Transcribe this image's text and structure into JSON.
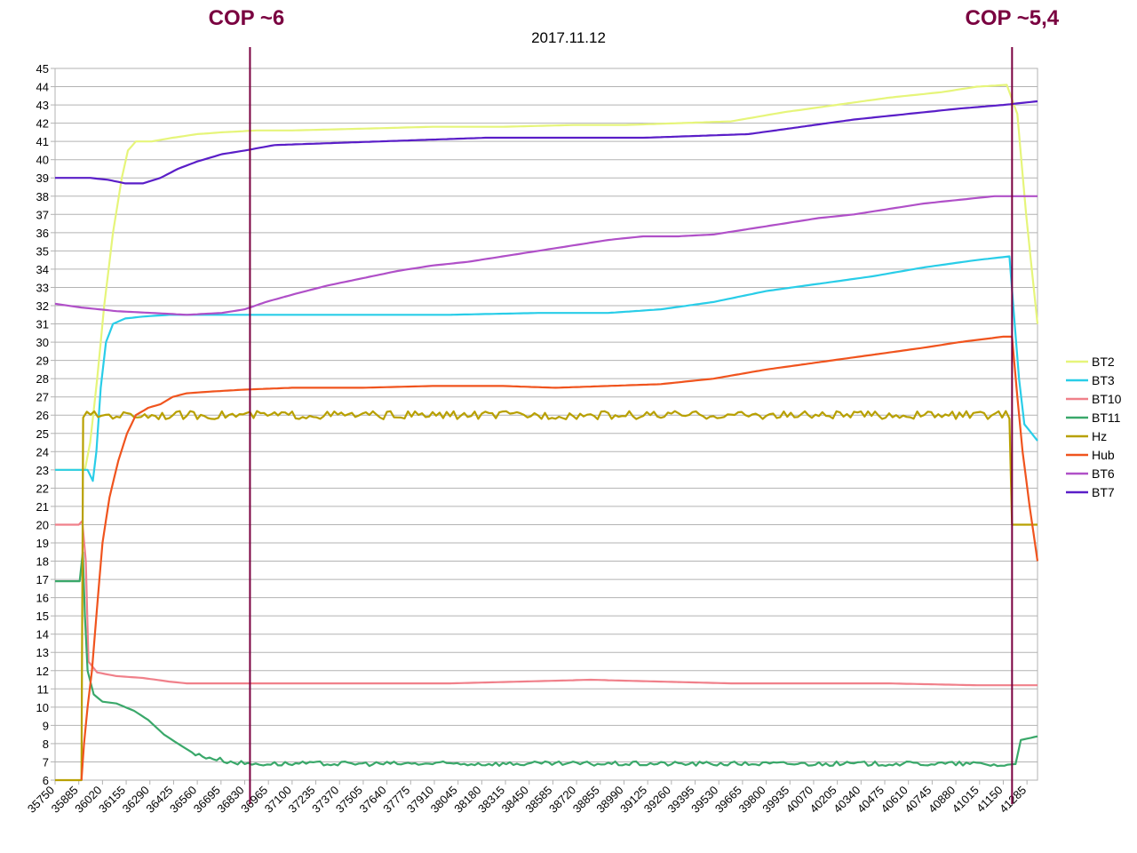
{
  "chart_data": {
    "type": "line",
    "title": "2017.11.12",
    "xlabel": "",
    "ylabel": "",
    "xlim": [
      35750,
      41345
    ],
    "ylim": [
      6,
      45
    ],
    "y_tick_step": 1,
    "x_ticks": [
      35750,
      35885,
      36020,
      36155,
      36290,
      36425,
      36560,
      36695,
      36830,
      36965,
      37100,
      37235,
      37370,
      37505,
      37640,
      37775,
      37910,
      38045,
      38180,
      38315,
      38450,
      38585,
      38720,
      38855,
      38990,
      39125,
      39260,
      39395,
      39530,
      39665,
      39800,
      39935,
      40070,
      40205,
      40340,
      40475,
      40610,
      40745,
      40880,
      41015,
      41150,
      41285
    ],
    "grid": true,
    "legend_position": "right",
    "annotations": [
      {
        "text": "COP ~6",
        "x": 36860,
        "color": "#7a0040"
      },
      {
        "text": "COP ~5,4",
        "x": 41200,
        "color": "#7a0040"
      }
    ],
    "series": [
      {
        "name": "BT2",
        "color": "#e6f57a",
        "points": [
          [
            35750,
            23
          ],
          [
            35885,
            23
          ],
          [
            35920,
            23
          ],
          [
            35950,
            24.5
          ],
          [
            35990,
            28
          ],
          [
            36030,
            32
          ],
          [
            36080,
            36
          ],
          [
            36130,
            39
          ],
          [
            36165,
            40.5
          ],
          [
            36210,
            41
          ],
          [
            36300,
            41
          ],
          [
            36420,
            41.2
          ],
          [
            36560,
            41.4
          ],
          [
            36700,
            41.5
          ],
          [
            36900,
            41.6
          ],
          [
            37100,
            41.6
          ],
          [
            37500,
            41.7
          ],
          [
            37900,
            41.8
          ],
          [
            38300,
            41.8
          ],
          [
            38700,
            41.9
          ],
          [
            39000,
            41.9
          ],
          [
            39300,
            42
          ],
          [
            39600,
            42.1
          ],
          [
            39900,
            42.6
          ],
          [
            40200,
            43
          ],
          [
            40500,
            43.4
          ],
          [
            40800,
            43.7
          ],
          [
            41000,
            44
          ],
          [
            41170,
            44.1
          ],
          [
            41230,
            42.5
          ],
          [
            41280,
            37
          ],
          [
            41345,
            31
          ]
        ]
      },
      {
        "name": "BT3",
        "color": "#29cde8",
        "points": [
          [
            35750,
            23
          ],
          [
            35935,
            23
          ],
          [
            35965,
            22.4
          ],
          [
            35985,
            24
          ],
          [
            36010,
            27.5
          ],
          [
            36040,
            30
          ],
          [
            36080,
            31
          ],
          [
            36150,
            31.3
          ],
          [
            36250,
            31.4
          ],
          [
            36400,
            31.5
          ],
          [
            36600,
            31.5
          ],
          [
            36830,
            31.5
          ],
          [
            37500,
            31.5
          ],
          [
            38000,
            31.5
          ],
          [
            38500,
            31.6
          ],
          [
            38900,
            31.6
          ],
          [
            39200,
            31.8
          ],
          [
            39500,
            32.2
          ],
          [
            39800,
            32.8
          ],
          [
            40100,
            33.2
          ],
          [
            40400,
            33.6
          ],
          [
            40700,
            34.1
          ],
          [
            41000,
            34.5
          ],
          [
            41185,
            34.7
          ],
          [
            41215,
            31
          ],
          [
            41240,
            28
          ],
          [
            41270,
            25.5
          ],
          [
            41345,
            24.6
          ]
        ]
      },
      {
        "name": "BT10",
        "color": "#f0808a",
        "points": [
          [
            35750,
            20
          ],
          [
            35885,
            20
          ],
          [
            35905,
            20.2
          ],
          [
            35925,
            18
          ],
          [
            35940,
            12.5
          ],
          [
            35990,
            11.9
          ],
          [
            36100,
            11.7
          ],
          [
            36250,
            11.6
          ],
          [
            36400,
            11.4
          ],
          [
            36500,
            11.3
          ],
          [
            36830,
            11.3
          ],
          [
            37500,
            11.3
          ],
          [
            38000,
            11.3
          ],
          [
            38400,
            11.4
          ],
          [
            38800,
            11.5
          ],
          [
            39200,
            11.4
          ],
          [
            39600,
            11.3
          ],
          [
            40000,
            11.3
          ],
          [
            40500,
            11.3
          ],
          [
            41000,
            11.2
          ],
          [
            41200,
            11.2
          ],
          [
            41345,
            11.2
          ]
        ]
      },
      {
        "name": "BT11",
        "color": "#3aa86a",
        "points": [
          [
            35750,
            16.9
          ],
          [
            35890,
            16.9
          ],
          [
            35908,
            18.5
          ],
          [
            35920,
            15
          ],
          [
            35935,
            12
          ],
          [
            35970,
            10.7
          ],
          [
            36020,
            10.3
          ],
          [
            36100,
            10.2
          ],
          [
            36200,
            9.8
          ],
          [
            36280,
            9.3
          ],
          [
            36370,
            8.5
          ],
          [
            36450,
            8
          ],
          [
            36550,
            7.4
          ],
          [
            36650,
            7.2
          ],
          [
            36750,
            7
          ],
          [
            36850,
            6.9
          ],
          [
            37000,
            6.9
          ],
          [
            37500,
            6.9
          ],
          [
            38000,
            6.9
          ],
          [
            38500,
            6.9
          ],
          [
            39000,
            6.9
          ],
          [
            39500,
            6.9
          ],
          [
            40000,
            6.9
          ],
          [
            40500,
            6.9
          ],
          [
            41000,
            6.9
          ],
          [
            41175,
            6.8
          ],
          [
            41220,
            6.9
          ],
          [
            41250,
            8.2
          ],
          [
            41345,
            8.4
          ]
        ]
      },
      {
        "name": "Hz",
        "color": "#b8a000",
        "points": [
          [
            35750,
            6
          ],
          [
            35900,
            6
          ],
          [
            35910,
            26
          ],
          [
            36100,
            26
          ],
          [
            36500,
            26
          ],
          [
            37000,
            26
          ],
          [
            37500,
            26
          ],
          [
            38000,
            26
          ],
          [
            38500,
            26
          ],
          [
            39000,
            26
          ],
          [
            39500,
            26
          ],
          [
            40000,
            26
          ],
          [
            40500,
            26
          ],
          [
            41000,
            26
          ],
          [
            41185,
            26
          ],
          [
            41200,
            20
          ],
          [
            41345,
            20
          ]
        ]
      },
      {
        "name": "Hub",
        "color": "#f0541e",
        "points": [
          [
            35900,
            6
          ],
          [
            35915,
            8
          ],
          [
            35935,
            10
          ],
          [
            35960,
            12
          ],
          [
            35985,
            15
          ],
          [
            36020,
            19
          ],
          [
            36060,
            21.5
          ],
          [
            36110,
            23.5
          ],
          [
            36160,
            25
          ],
          [
            36210,
            26
          ],
          [
            36280,
            26.4
          ],
          [
            36350,
            26.6
          ],
          [
            36420,
            27
          ],
          [
            36500,
            27.2
          ],
          [
            36650,
            27.3
          ],
          [
            36830,
            27.4
          ],
          [
            37100,
            27.5
          ],
          [
            37500,
            27.5
          ],
          [
            37900,
            27.6
          ],
          [
            38300,
            27.6
          ],
          [
            38600,
            27.5
          ],
          [
            38900,
            27.6
          ],
          [
            39200,
            27.7
          ],
          [
            39500,
            28
          ],
          [
            39800,
            28.5
          ],
          [
            40100,
            28.9
          ],
          [
            40400,
            29.3
          ],
          [
            40700,
            29.7
          ],
          [
            40900,
            30
          ],
          [
            41150,
            30.3
          ],
          [
            41200,
            30.3
          ],
          [
            41230,
            27
          ],
          [
            41260,
            24
          ],
          [
            41300,
            21
          ],
          [
            41345,
            18
          ]
        ]
      },
      {
        "name": "BT6",
        "color": "#b050c8",
        "points": [
          [
            35750,
            32.1
          ],
          [
            35900,
            31.9
          ],
          [
            36100,
            31.7
          ],
          [
            36300,
            31.6
          ],
          [
            36500,
            31.5
          ],
          [
            36700,
            31.6
          ],
          [
            36830,
            31.8
          ],
          [
            36950,
            32.2
          ],
          [
            37100,
            32.6
          ],
          [
            37300,
            33.1
          ],
          [
            37500,
            33.5
          ],
          [
            37700,
            33.9
          ],
          [
            37900,
            34.2
          ],
          [
            38100,
            34.4
          ],
          [
            38300,
            34.7
          ],
          [
            38500,
            35
          ],
          [
            38700,
            35.3
          ],
          [
            38900,
            35.6
          ],
          [
            39100,
            35.8
          ],
          [
            39300,
            35.8
          ],
          [
            39500,
            35.9
          ],
          [
            39700,
            36.2
          ],
          [
            39900,
            36.5
          ],
          [
            40100,
            36.8
          ],
          [
            40300,
            37
          ],
          [
            40500,
            37.3
          ],
          [
            40700,
            37.6
          ],
          [
            40900,
            37.8
          ],
          [
            41100,
            38
          ],
          [
            41345,
            38
          ]
        ]
      },
      {
        "name": "BT7",
        "color": "#5a1ec8",
        "points": [
          [
            35750,
            39
          ],
          [
            35950,
            39
          ],
          [
            36050,
            38.9
          ],
          [
            36150,
            38.7
          ],
          [
            36250,
            38.7
          ],
          [
            36350,
            39
          ],
          [
            36450,
            39.5
          ],
          [
            36560,
            39.9
          ],
          [
            36700,
            40.3
          ],
          [
            36830,
            40.5
          ],
          [
            37000,
            40.8
          ],
          [
            37300,
            40.9
          ],
          [
            37600,
            41
          ],
          [
            37900,
            41.1
          ],
          [
            38200,
            41.2
          ],
          [
            38500,
            41.2
          ],
          [
            38800,
            41.2
          ],
          [
            39100,
            41.2
          ],
          [
            39400,
            41.3
          ],
          [
            39700,
            41.4
          ],
          [
            40000,
            41.8
          ],
          [
            40300,
            42.2
          ],
          [
            40600,
            42.5
          ],
          [
            40900,
            42.8
          ],
          [
            41150,
            43
          ],
          [
            41345,
            43.2
          ]
        ]
      }
    ]
  }
}
